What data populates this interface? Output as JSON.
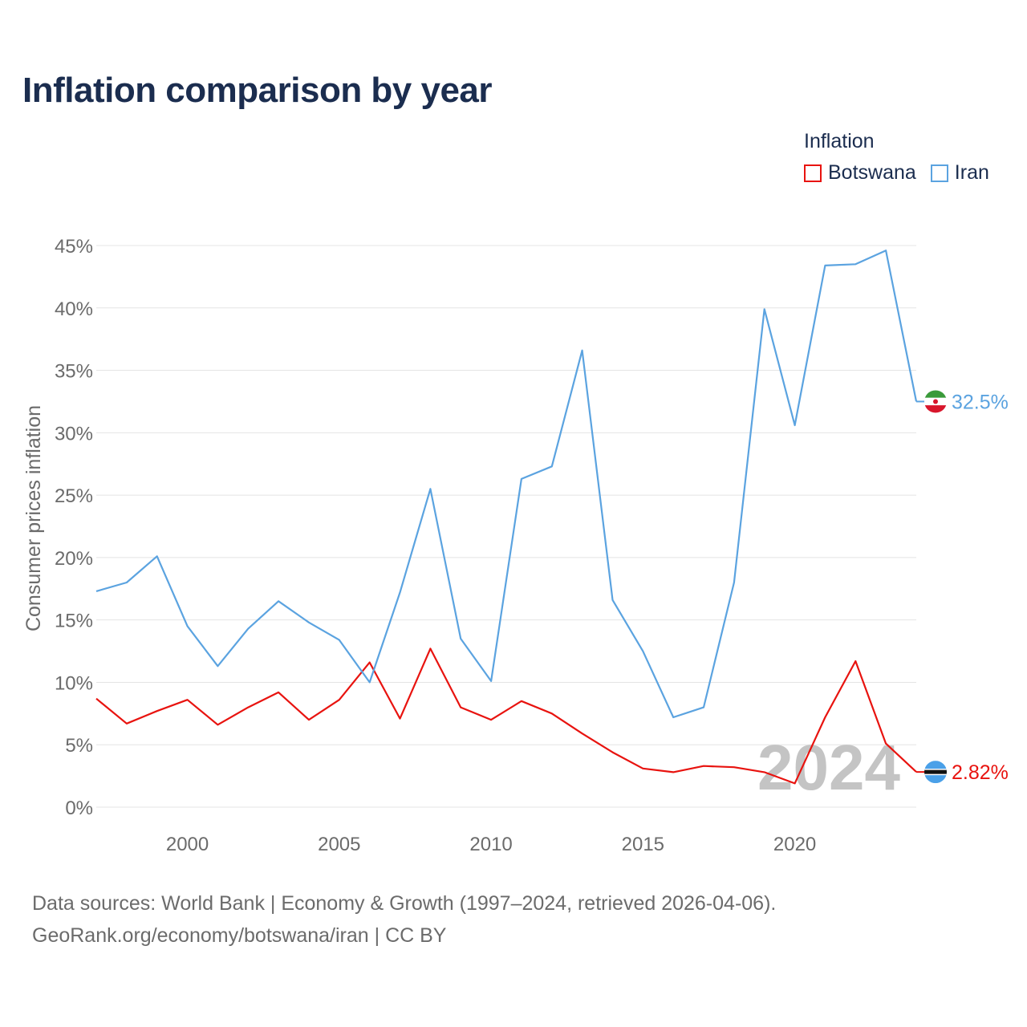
{
  "chart_data": {
    "type": "line",
    "title": "Inflation comparison by year",
    "legend_title": "Inflation",
    "ylabel": "Consumer prices inflation",
    "xlabel": "",
    "ylim": [
      0,
      45
    ],
    "xlim": [
      1997,
      2024
    ],
    "y_ticks": [
      {
        "value": 0,
        "label": "0%"
      },
      {
        "value": 5,
        "label": "5%"
      },
      {
        "value": 10,
        "label": "10%"
      },
      {
        "value": 15,
        "label": "15%"
      },
      {
        "value": 20,
        "label": "20%"
      },
      {
        "value": 25,
        "label": "25%"
      },
      {
        "value": 30,
        "label": "30%"
      },
      {
        "value": 35,
        "label": "35%"
      },
      {
        "value": 40,
        "label": "40%"
      },
      {
        "value": 45,
        "label": "45%"
      }
    ],
    "x_ticks": [
      {
        "value": 2000,
        "label": "2000"
      },
      {
        "value": 2005,
        "label": "2005"
      },
      {
        "value": 2010,
        "label": "2010"
      },
      {
        "value": 2015,
        "label": "2015"
      },
      {
        "value": 2020,
        "label": "2020"
      }
    ],
    "x": [
      1997,
      1998,
      1999,
      2000,
      2001,
      2002,
      2003,
      2004,
      2005,
      2006,
      2007,
      2008,
      2009,
      2010,
      2011,
      2012,
      2013,
      2014,
      2015,
      2016,
      2017,
      2018,
      2019,
      2020,
      2021,
      2022,
      2023,
      2024
    ],
    "series": [
      {
        "name": "Botswana",
        "color": "#e8130f",
        "end_label": "2.82%",
        "values": [
          8.7,
          6.7,
          7.7,
          8.6,
          6.6,
          8.0,
          9.2,
          7.0,
          8.6,
          11.6,
          7.1,
          12.7,
          8.0,
          7.0,
          8.5,
          7.5,
          5.9,
          4.4,
          3.1,
          2.8,
          3.3,
          3.2,
          2.8,
          1.9,
          7.2,
          11.7,
          5.1,
          2.82
        ]
      },
      {
        "name": "Iran",
        "color": "#5ba3e0",
        "end_label": "32.5%",
        "values": [
          17.3,
          18.0,
          20.1,
          14.5,
          11.3,
          14.3,
          16.5,
          14.8,
          13.4,
          10.0,
          17.2,
          25.5,
          13.5,
          10.1,
          26.3,
          27.3,
          36.6,
          16.6,
          12.5,
          7.2,
          8.0,
          18.0,
          39.9,
          30.6,
          43.4,
          43.5,
          44.6,
          32.5
        ]
      }
    ],
    "watermark": "2024"
  },
  "footer": {
    "line1": "Data sources: World Bank | Economy & Growth (1997–2024, retrieved 2026-04-06).",
    "line2": "GeoRank.org/economy/botswana/iran | CC BY"
  },
  "colors": {
    "title": "#1b2d4f",
    "grid": "#e4e4e4",
    "tick_text": "#6b6b6b",
    "watermark": "#c4c4c4"
  }
}
